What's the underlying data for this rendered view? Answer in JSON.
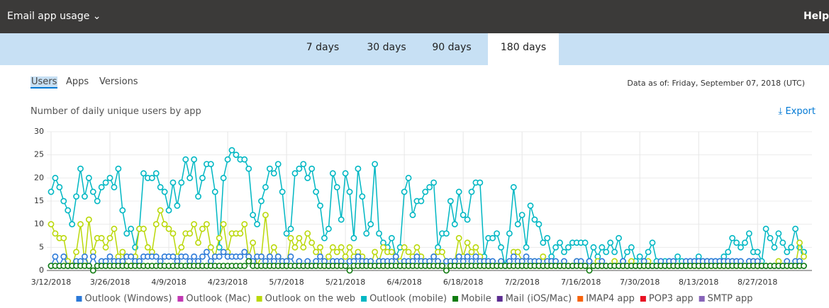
{
  "header": {
    "title": "Email app usage",
    "help": "Help"
  },
  "tabs": [
    "7 days",
    "30 days",
    "90 days",
    "180 days"
  ],
  "selected_tab": "180 days",
  "subtabs": [
    "Users",
    "Apps",
    "Versions"
  ],
  "selected_subtab": "Users",
  "data_as_of": "Data as of: Friday, September 07, 2018 (UTC)",
  "export": "Export",
  "chart_data": {
    "type": "line",
    "title": "Number of daily unique users by app",
    "categories": [
      "3/12/2018",
      null,
      null,
      null,
      null,
      null,
      null,
      null,
      null,
      null,
      null,
      null,
      null,
      null,
      "3/26/2018",
      null,
      null,
      null,
      null,
      null,
      null,
      null,
      null,
      null,
      null,
      null,
      null,
      null,
      "4/9/2018",
      null,
      null,
      null,
      null,
      null,
      null,
      null,
      null,
      null,
      null,
      null,
      null,
      null,
      "4/23/2018",
      null,
      null,
      null,
      null,
      null,
      null,
      null,
      null,
      null,
      null,
      null,
      null,
      null,
      "5/7/2018",
      null,
      null,
      null,
      null,
      null,
      null,
      null,
      null,
      null,
      null,
      null,
      null,
      null,
      "5/21/2018",
      null,
      null,
      null,
      null,
      null,
      null,
      null,
      null,
      null,
      null,
      null,
      null,
      null,
      "6/4/2018",
      null,
      null,
      null,
      null,
      null,
      null,
      null,
      null,
      null,
      null,
      null,
      null,
      null,
      "6/18/2018",
      null,
      null,
      null,
      null,
      null,
      null,
      null,
      null,
      null,
      null,
      null,
      null,
      null,
      "7/2/2018",
      null,
      null,
      null,
      null,
      null,
      null,
      null,
      null,
      null,
      null,
      null,
      null,
      null,
      "7/16/2018",
      null,
      null,
      null,
      null,
      null,
      null,
      null,
      null,
      null,
      null,
      null,
      null,
      null,
      "7/30/2018",
      null,
      null,
      null,
      null,
      null,
      null,
      null,
      null,
      null,
      null,
      null,
      null,
      null,
      "8/13/2018",
      null,
      null,
      null,
      null,
      null,
      null,
      null,
      null,
      null,
      null,
      null,
      null,
      null,
      "8/27/2018",
      null,
      null,
      null,
      null,
      null,
      null,
      null,
      null,
      null,
      null,
      null
    ],
    "ylim": [
      0,
      30
    ],
    "yticks": [
      0,
      5,
      10,
      15,
      20,
      25,
      30
    ],
    "grid": true,
    "series": [
      {
        "name": "Outlook (Windows)",
        "color": "#2b79d8",
        "values": [
          1,
          3,
          1,
          3,
          1,
          1,
          2,
          2,
          3,
          1,
          3,
          1,
          2,
          2,
          3,
          2,
          2,
          2,
          3,
          3,
          2,
          2,
          3,
          3,
          3,
          3,
          2,
          3,
          3,
          3,
          2,
          3,
          3,
          2,
          3,
          2,
          3,
          4,
          2,
          3,
          3,
          4,
          3,
          3,
          3,
          3,
          4,
          3,
          2,
          3,
          3,
          2,
          3,
          2,
          3,
          2,
          2,
          3,
          1,
          2,
          1,
          2,
          1,
          2,
          3,
          2,
          1,
          2,
          2,
          2,
          1,
          2,
          2,
          3,
          2,
          2,
          2,
          1,
          2,
          2,
          2,
          2,
          3,
          1,
          2,
          2,
          2,
          3,
          2,
          2,
          2,
          3,
          2,
          1,
          2,
          2,
          2,
          3,
          2,
          3,
          2,
          3,
          2,
          2,
          2,
          2,
          1,
          2,
          1,
          2,
          3,
          2,
          2,
          3,
          2,
          2,
          2,
          1,
          2,
          2,
          2,
          1,
          2,
          1,
          1,
          2,
          2,
          1,
          2,
          1,
          1,
          2,
          1,
          1,
          1,
          1,
          2,
          1,
          1,
          1,
          1,
          2,
          1,
          1,
          1,
          2,
          1,
          2,
          2,
          1,
          1,
          2,
          2,
          2,
          2,
          2,
          2,
          2,
          2,
          2,
          2,
          2,
          2,
          2,
          2,
          1,
          2,
          2,
          2,
          1,
          1,
          1,
          1,
          1,
          1,
          2,
          1,
          2,
          2,
          1
        ]
      },
      {
        "name": "Outlook (Mac)",
        "color": "#c239b3"
      },
      {
        "name": "Outlook on the web",
        "color": "#bad80a",
        "values": [
          10,
          8,
          7,
          7,
          2,
          1,
          4,
          10,
          2,
          11,
          4,
          7,
          7,
          5,
          7,
          9,
          3,
          4,
          1,
          1,
          3,
          9,
          9,
          5,
          4,
          10,
          13,
          10,
          9,
          8,
          3,
          5,
          8,
          8,
          10,
          6,
          9,
          10,
          5,
          3,
          7,
          10,
          4,
          8,
          8,
          8,
          10,
          3,
          6,
          1,
          3,
          12,
          3,
          5,
          3,
          2,
          1,
          7,
          5,
          7,
          5,
          8,
          6,
          4,
          5,
          1,
          3,
          5,
          4,
          5,
          3,
          5,
          3,
          4,
          3,
          2,
          1,
          4,
          2,
          5,
          4,
          4,
          3,
          2,
          5,
          4,
          3,
          5,
          3,
          2,
          1,
          3,
          4,
          4,
          2,
          1,
          2,
          7,
          3,
          6,
          4,
          5,
          3,
          1,
          1,
          1,
          1,
          2,
          1,
          1,
          4,
          4,
          2,
          1,
          1,
          2,
          1,
          3,
          1,
          1,
          1,
          1,
          1,
          1,
          1,
          2,
          1,
          1,
          1,
          1,
          2,
          1,
          1,
          1,
          2,
          1,
          1,
          1,
          2,
          1,
          1,
          1,
          2,
          1,
          1,
          1,
          1,
          1,
          1,
          1,
          1,
          1,
          1,
          1,
          1,
          1,
          2,
          1,
          1,
          1,
          1,
          1,
          2,
          1,
          1,
          1,
          1,
          2,
          1,
          1,
          1,
          1,
          1,
          2,
          1,
          1,
          1,
          1,
          6,
          3
        ]
      },
      {
        "name": "Outlook (mobile)",
        "color": "#00b7c3",
        "values": [
          17,
          20,
          18,
          15,
          13,
          10,
          16,
          22,
          16,
          20,
          17,
          15,
          18,
          19,
          20,
          18,
          22,
          13,
          8,
          9,
          5,
          9,
          21,
          20,
          20,
          21,
          18,
          17,
          13,
          19,
          14,
          19,
          24,
          20,
          24,
          16,
          20,
          23,
          23,
          17,
          5,
          20,
          24,
          26,
          25,
          24,
          24,
          22,
          12,
          10,
          15,
          18,
          22,
          21,
          23,
          17,
          8,
          9,
          21,
          22,
          23,
          20,
          22,
          17,
          14,
          7,
          9,
          21,
          18,
          11,
          21,
          17,
          7,
          22,
          16,
          8,
          10,
          23,
          8,
          6,
          5,
          7,
          3,
          5,
          17,
          20,
          12,
          15,
          15,
          17,
          18,
          19,
          5,
          8,
          8,
          15,
          10,
          17,
          12,
          11,
          17,
          19,
          19,
          3,
          7,
          7,
          8,
          5,
          1,
          8,
          18,
          10,
          12,
          5,
          14,
          11,
          10,
          6,
          7,
          3,
          5,
          6,
          4,
          5,
          6,
          6,
          6,
          6,
          2,
          5,
          3,
          5,
          4,
          6,
          4,
          7,
          2,
          4,
          5,
          2,
          3,
          2,
          4,
          6,
          2,
          1,
          2,
          2,
          1,
          3,
          2,
          1,
          2,
          2,
          3,
          2,
          2,
          2,
          2,
          2,
          3,
          4,
          7,
          6,
          5,
          6,
          8,
          4,
          4,
          2,
          9,
          7,
          5,
          8,
          6,
          4,
          5,
          9,
          5,
          4
        ]
      },
      {
        "name": "Mobile",
        "color": "#107c10",
        "values": [
          1,
          1,
          1,
          1,
          1,
          1,
          1,
          1,
          1,
          1,
          0,
          1,
          1,
          1,
          1,
          1,
          1,
          1,
          1,
          1,
          1,
          1,
          1,
          1,
          1,
          1,
          1,
          1,
          1,
          1,
          1,
          1,
          1,
          1,
          1,
          1,
          1,
          1,
          1,
          1,
          1,
          1,
          1,
          1,
          1,
          1,
          1,
          2,
          1,
          1,
          1,
          1,
          1,
          1,
          1,
          1,
          1,
          1,
          1,
          1,
          1,
          1,
          1,
          1,
          1,
          1,
          1,
          1,
          1,
          1,
          1,
          0,
          1,
          1,
          1,
          1,
          1,
          1,
          1,
          1,
          1,
          1,
          1,
          1,
          1,
          1,
          1,
          1,
          1,
          1,
          1,
          1,
          1,
          1,
          0,
          1,
          1,
          1,
          1,
          1,
          1,
          1,
          1,
          1,
          1,
          1,
          1,
          1,
          1,
          1,
          1,
          1,
          1,
          1,
          1,
          1,
          1,
          1,
          1,
          1,
          1,
          1,
          1,
          1,
          1,
          1,
          1,
          1,
          0,
          1,
          1,
          1,
          1,
          1,
          1,
          1,
          1,
          1,
          1,
          1,
          1,
          1,
          1,
          1,
          1,
          1,
          1,
          1,
          1,
          1,
          1,
          1,
          1,
          1,
          1,
          1,
          1,
          1,
          1,
          1,
          1,
          1,
          1,
          1,
          1,
          1,
          1,
          1,
          1,
          1,
          1,
          1,
          1,
          1,
          1,
          1,
          1,
          1,
          1,
          1
        ]
      },
      {
        "name": "Mail (iOS/Mac)",
        "color": "#5c2d91"
      },
      {
        "name": "IMAP4 app",
        "color": "#f7630c"
      },
      {
        "name": "POP3 app",
        "color": "#e81123"
      },
      {
        "name": "SMTP app",
        "color": "#8764b8"
      }
    ]
  }
}
